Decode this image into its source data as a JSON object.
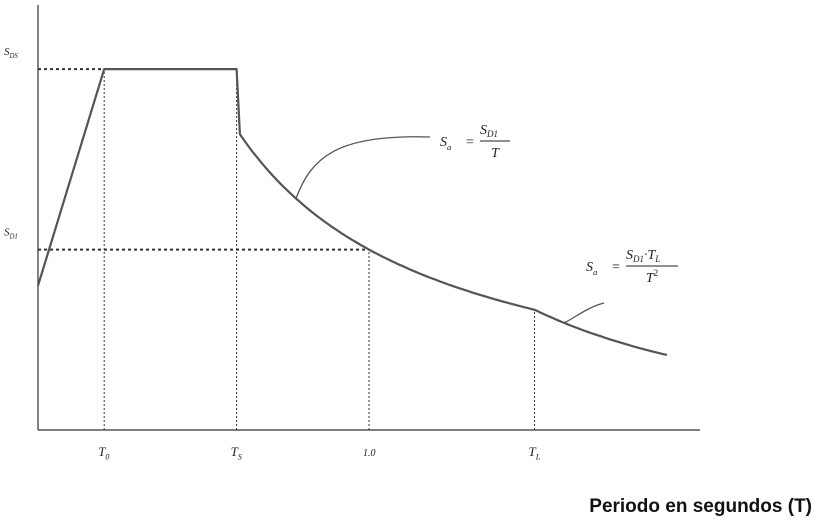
{
  "chart_data": {
    "type": "line",
    "title": "",
    "xlabel": "Periodo en segundos (T)",
    "ylabel": "",
    "x_ticks": [
      {
        "label": "T0",
        "main": "T",
        "sub": "0",
        "x": 0.2
      },
      {
        "label": "TS",
        "main": "T",
        "sub": "S",
        "x": 0.6
      },
      {
        "label": "1.0",
        "main": "1.0",
        "sub": "",
        "x": 1.0
      },
      {
        "label": "TL",
        "main": "T",
        "sub": "L",
        "x": 1.5
      }
    ],
    "y_ticks": [
      {
        "label": "SDS",
        "main": "S",
        "sub": "DS",
        "y": 1.0
      },
      {
        "label": "SD1",
        "main": "S",
        "sub": "D1",
        "y": 0.5
      }
    ],
    "xlim": [
      0,
      2.0
    ],
    "ylim": [
      0,
      1.15
    ],
    "series": [
      {
        "x": [
          0,
          0.2,
          0.6,
          0.7,
          0.8,
          0.9,
          1.0,
          1.1,
          1.2,
          1.3,
          1.4,
          1.5,
          1.6,
          1.7,
          1.8,
          1.9
        ],
        "y": [
          0.4,
          1.0,
          1.0,
          0.714,
          0.625,
          0.556,
          0.5,
          0.455,
          0.417,
          0.385,
          0.357,
          0.333,
          0.293,
          0.26,
          0.231,
          0.208
        ]
      }
    ],
    "reference_lines": [
      {
        "name": "T0",
        "type": "vertical",
        "x": 0.2
      },
      {
        "name": "TS",
        "type": "vertical",
        "x": 0.6
      },
      {
        "name": "1.0",
        "type": "vertical",
        "x": 1.0
      },
      {
        "name": "TL",
        "type": "vertical",
        "x": 1.5
      },
      {
        "name": "SDS",
        "type": "horizontal",
        "y": 1.0
      },
      {
        "name": "SD1",
        "type": "horizontal",
        "y": 0.5
      }
    ],
    "annotations": [
      {
        "name": "formula-sd1-over-t",
        "lhs": "Sa",
        "num": "SD1",
        "den": "T",
        "at_x": 0.78
      },
      {
        "name": "formula-sd1-tl-over-t2",
        "lhs": "Sa",
        "num": "SD1·TL",
        "den": "T2",
        "at_x": 1.59
      }
    ],
    "grid": false,
    "legend": "none"
  },
  "colors": {
    "curve": "#555555",
    "axis": "#333333",
    "guide": "#333333"
  }
}
